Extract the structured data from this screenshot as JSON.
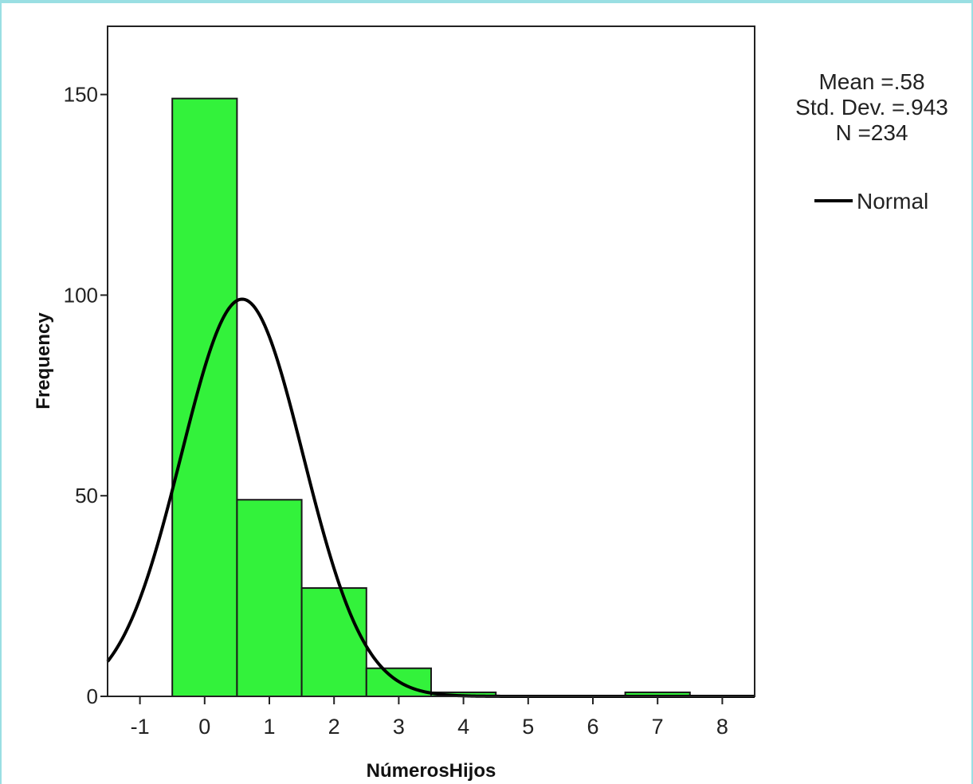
{
  "chart_data": {
    "type": "bar",
    "subtype": "histogram with normal curve",
    "xlabel": "NúmerosHijos",
    "ylabel": "Frequency",
    "xlim": [
      -1.5,
      8.5
    ],
    "ylim": [
      0,
      167
    ],
    "x_ticks": [
      -1,
      0,
      1,
      2,
      3,
      4,
      5,
      6,
      7,
      8
    ],
    "y_ticks": [
      0,
      50,
      100,
      150
    ],
    "bin_width": 1,
    "categories": [
      "0",
      "1",
      "2",
      "3",
      "4",
      "7"
    ],
    "bins": [
      {
        "x": 0,
        "count": 149
      },
      {
        "x": 1,
        "count": 49
      },
      {
        "x": 2,
        "count": 27
      },
      {
        "x": 3,
        "count": 7
      },
      {
        "x": 4,
        "count": 1
      },
      {
        "x": 7,
        "count": 1
      }
    ],
    "stats": {
      "mean_label": "Mean =.58",
      "std_label": "Std. Dev. =.943",
      "n_label": "N =234"
    },
    "normal_curve": {
      "mean": 0.58,
      "std": 0.943,
      "n": 234
    },
    "legend": {
      "label": "Normal",
      "position": "right"
    },
    "grid": false,
    "colors": {
      "bar_fill": "#33f23b",
      "bar_stroke": "#1a1a1a",
      "curve": "#000000",
      "frame": "#9adfe3"
    }
  }
}
